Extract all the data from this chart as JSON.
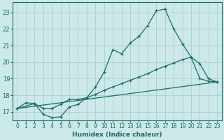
{
  "xlabel": "Humidex (Indice chaleur)",
  "bg_color": "#cce8e8",
  "grid_color": "#aacfcf",
  "line_color": "#1a6b6b",
  "xlim": [
    -0.5,
    23.5
  ],
  "ylim": [
    16.5,
    23.6
  ],
  "yticks": [
    17,
    18,
    19,
    20,
    21,
    22,
    23
  ],
  "xticks": [
    0,
    1,
    2,
    3,
    4,
    5,
    6,
    7,
    8,
    9,
    10,
    11,
    12,
    13,
    14,
    15,
    16,
    17,
    18,
    19,
    20,
    21,
    22,
    23
  ],
  "line1_x": [
    0,
    1,
    2,
    3,
    4,
    5,
    6,
    7,
    8,
    9,
    10,
    11,
    12,
    13,
    14,
    15,
    16,
    17,
    18,
    19,
    20,
    21,
    22,
    23
  ],
  "line1_y": [
    17.2,
    17.55,
    17.5,
    16.85,
    16.65,
    16.7,
    17.3,
    17.45,
    17.85,
    18.5,
    19.4,
    20.75,
    20.5,
    21.15,
    21.55,
    22.2,
    23.1,
    23.2,
    22.0,
    21.1,
    20.3,
    19.9,
    19.0,
    18.8
  ],
  "line2_x": [
    0,
    2,
    3,
    4,
    5,
    6,
    7,
    8,
    9,
    10,
    11,
    12,
    13,
    14,
    15,
    16,
    17,
    18,
    19,
    20,
    21,
    22,
    23
  ],
  "line2_y": [
    17.2,
    17.5,
    17.2,
    17.2,
    17.45,
    17.75,
    17.75,
    17.85,
    18.05,
    18.3,
    18.5,
    18.7,
    18.9,
    19.1,
    19.3,
    19.55,
    19.75,
    19.95,
    20.15,
    20.3,
    19.0,
    18.85,
    18.8
  ],
  "line3_x": [
    0,
    23
  ],
  "line3_y": [
    17.2,
    18.8
  ]
}
